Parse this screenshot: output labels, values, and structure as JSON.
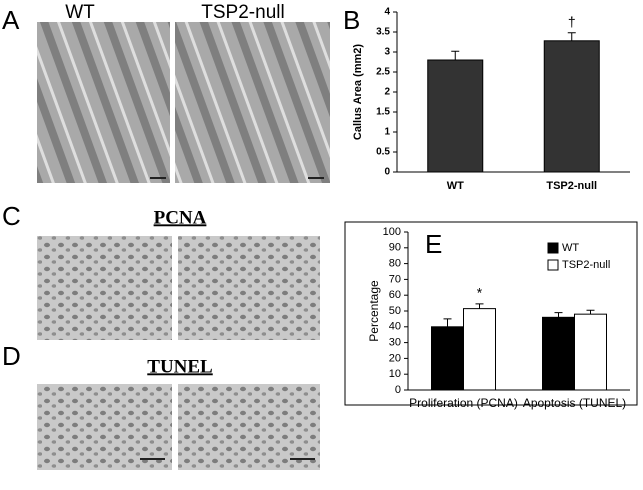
{
  "panel_labels": [
    "A",
    "B",
    "C",
    "D",
    "E"
  ],
  "panel_a": {
    "image_labels": [
      "WT",
      "TSP2-null"
    ]
  },
  "panel_c": {
    "title": "PCNA"
  },
  "panel_d": {
    "title": "TUNEL"
  },
  "chart_data": [
    {
      "type": "bar",
      "y_label": "Callus Area (mm2)",
      "categories": [
        "WT",
        "TSP2-null"
      ],
      "values": [
        2.8,
        3.28
      ],
      "errors": [
        0.22,
        0.2
      ],
      "color": "#333333",
      "ylim": [
        0,
        4
      ],
      "yticks": [
        0,
        0.5,
        1,
        1.5,
        2,
        2.5,
        3,
        3.5,
        4
      ],
      "grid": false,
      "annotations": [
        "†"
      ]
    },
    {
      "type": "bar",
      "y_label": "Percentage",
      "categories": [
        "Proliferation (PCNA)",
        "Apoptosis (TUNEL)"
      ],
      "series": [
        {
          "name": "WT",
          "color": "#000000",
          "values": [
            40,
            46
          ],
          "errors": [
            5,
            3
          ]
        },
        {
          "name": "TSP2-null",
          "color": "#ffffff",
          "values": [
            51.5,
            48
          ],
          "errors": [
            3,
            2.5
          ]
        }
      ],
      "ylim": [
        0,
        100
      ],
      "yticks": [
        0,
        10,
        20,
        30,
        40,
        50,
        60,
        70,
        80,
        90,
        100
      ],
      "grid": false,
      "legend": "upper right",
      "annotations": [
        "*"
      ]
    }
  ]
}
